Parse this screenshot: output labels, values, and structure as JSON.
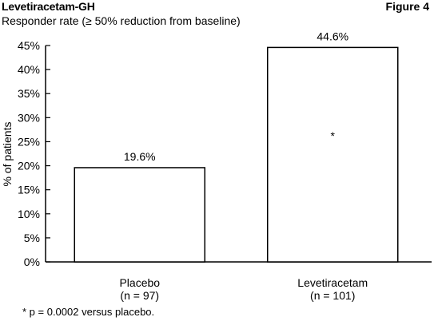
{
  "header": {
    "title": "Levetiracetam-GH",
    "figure_label": "Figure 4",
    "subtitle": "Responder rate (≥ 50% reduction from baseline)"
  },
  "footnote": "* p = 0.0002 versus placebo.",
  "chart_data": {
    "type": "bar",
    "title": "Responder rate (≥ 50% reduction from baseline)",
    "ylabel": "% of patients",
    "xlabel": "",
    "ylim": [
      0,
      45
    ],
    "yticks": [
      0,
      5,
      10,
      15,
      20,
      25,
      30,
      35,
      40,
      45
    ],
    "ytick_labels": [
      "0%",
      "5%",
      "10%",
      "15%",
      "20%",
      "25%",
      "30%",
      "35%",
      "40%",
      "45%"
    ],
    "categories": [
      "Placebo",
      "Levetiracetam"
    ],
    "category_sublabels": [
      "(n = 97)",
      "(n = 101)"
    ],
    "values": [
      19.6,
      44.6
    ],
    "value_labels": [
      "19.6%",
      "44.6%"
    ],
    "bar_annotations": [
      "",
      "*"
    ],
    "grid": false,
    "legend": "none"
  }
}
